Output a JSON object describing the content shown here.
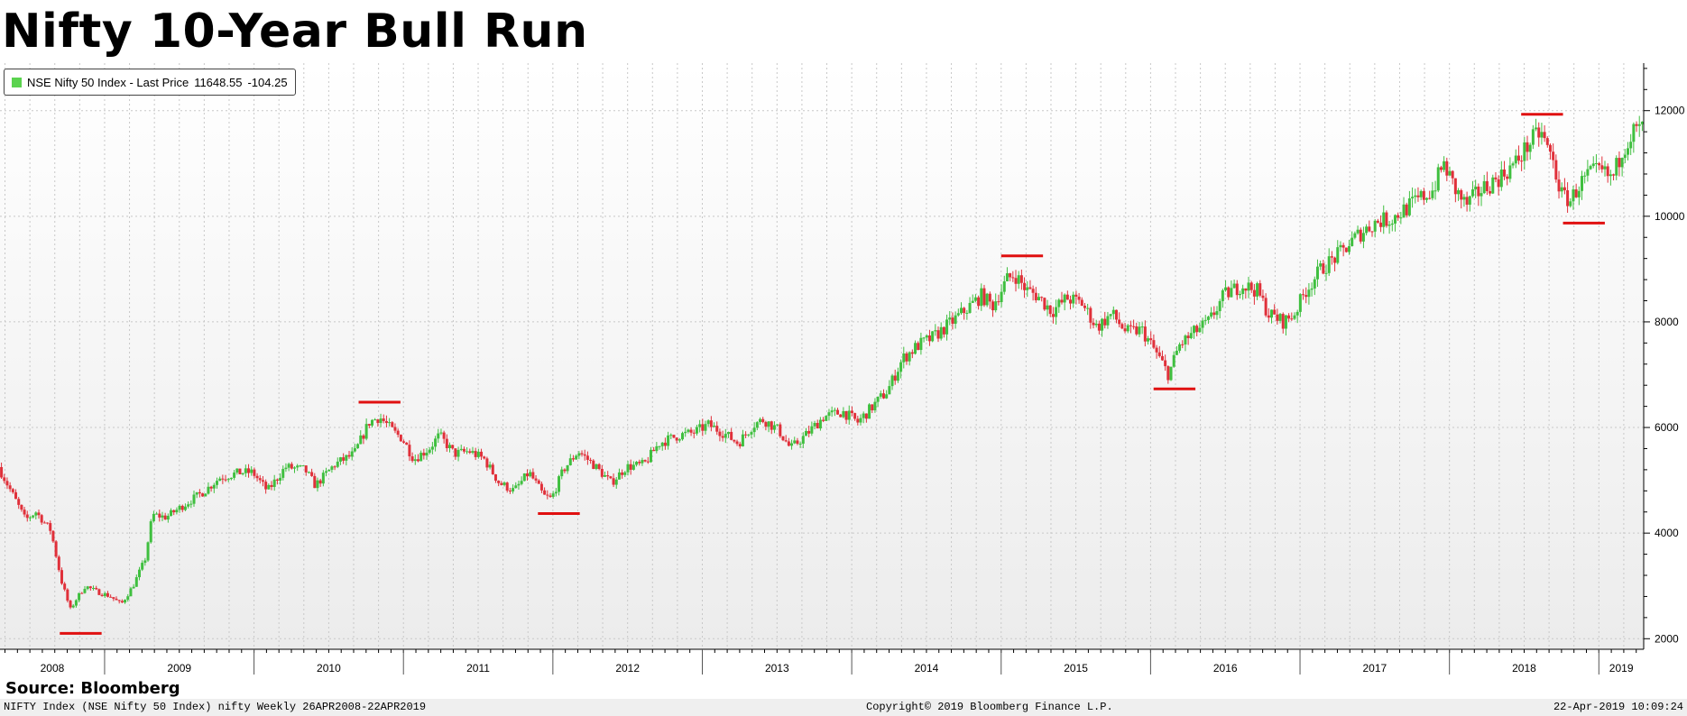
{
  "title": "Nifty 10-Year Bull Run",
  "legend": {
    "label": "NSE Nifty 50 Index - Last Price",
    "last_price": "11648.55",
    "change": "-104.25",
    "swatch_color": "#5bd34f"
  },
  "source": "Source: Bloomberg",
  "footer": {
    "left": "NIFTY Index (NSE Nifty 50 Index) nifty  Weekly 26APR2008-22APR2019",
    "center": "Copyright© 2019 Bloomberg Finance L.P.",
    "right": "22-Apr-2019 10:09:24"
  },
  "chart_data": {
    "type": "candlestick",
    "title": "Nifty 10-Year Bull Run",
    "series": [
      {
        "name": "NSE Nifty 50 Index - Last Price"
      }
    ],
    "y_axis_position": "right",
    "ylim": [
      1800,
      12900
    ],
    "yticks": [
      2000,
      4000,
      6000,
      8000,
      10000,
      12000
    ],
    "xlim": [
      2008.3,
      2019.3
    ],
    "x_labels": [
      "2008",
      "2009",
      "2010",
      "2011",
      "2012",
      "2013",
      "2014",
      "2015",
      "2016",
      "2017",
      "2018",
      "2019"
    ],
    "grid": true,
    "up_color": "#3fbf3f",
    "down_color": "#e0303a",
    "marker_color": "#e01010",
    "price_path": [
      [
        2008.3,
        5250
      ],
      [
        2008.4,
        4700
      ],
      [
        2008.48,
        4250
      ],
      [
        2008.55,
        4400
      ],
      [
        2008.65,
        4050
      ],
      [
        2008.72,
        3100
      ],
      [
        2008.78,
        2550
      ],
      [
        2008.82,
        2750
      ],
      [
        2008.88,
        3000
      ],
      [
        2008.95,
        2900
      ],
      [
        2009.05,
        2800
      ],
      [
        2009.12,
        2650
      ],
      [
        2009.2,
        3000
      ],
      [
        2009.28,
        3500
      ],
      [
        2009.33,
        4350
      ],
      [
        2009.42,
        4300
      ],
      [
        2009.55,
        4550
      ],
      [
        2009.68,
        4800
      ],
      [
        2009.78,
        5050
      ],
      [
        2009.92,
        5150
      ],
      [
        2010.0,
        5150
      ],
      [
        2010.1,
        4800
      ],
      [
        2010.22,
        5250
      ],
      [
        2010.35,
        5200
      ],
      [
        2010.42,
        4900
      ],
      [
        2010.55,
        5300
      ],
      [
        2010.68,
        5500
      ],
      [
        2010.78,
        6100
      ],
      [
        2010.85,
        6200
      ],
      [
        2010.95,
        5900
      ],
      [
        2011.0,
        5800
      ],
      [
        2011.08,
        5400
      ],
      [
        2011.18,
        5600
      ],
      [
        2011.25,
        5850
      ],
      [
        2011.35,
        5500
      ],
      [
        2011.45,
        5550
      ],
      [
        2011.55,
        5400
      ],
      [
        2011.65,
        4950
      ],
      [
        2011.75,
        4800
      ],
      [
        2011.85,
        5150
      ],
      [
        2011.95,
        4700
      ],
      [
        2012.0,
        4650
      ],
      [
        2012.08,
        5200
      ],
      [
        2012.18,
        5550
      ],
      [
        2012.28,
        5300
      ],
      [
        2012.4,
        4950
      ],
      [
        2012.5,
        5250
      ],
      [
        2012.62,
        5300
      ],
      [
        2012.72,
        5700
      ],
      [
        2012.85,
        5850
      ],
      [
        2012.95,
        5900
      ],
      [
        2013.05,
        6050
      ],
      [
        2013.15,
        5900
      ],
      [
        2013.25,
        5700
      ],
      [
        2013.35,
        6050
      ],
      [
        2013.42,
        6150
      ],
      [
        2013.52,
        5950
      ],
      [
        2013.6,
        5600
      ],
      [
        2013.7,
        5850
      ],
      [
        2013.82,
        6200
      ],
      [
        2013.95,
        6300
      ],
      [
        2014.05,
        6100
      ],
      [
        2014.15,
        6400
      ],
      [
        2014.25,
        6700
      ],
      [
        2014.35,
        7300
      ],
      [
        2014.45,
        7550
      ],
      [
        2014.55,
        7700
      ],
      [
        2014.68,
        8000
      ],
      [
        2014.78,
        8250
      ],
      [
        2014.88,
        8500
      ],
      [
        2014.95,
        8300
      ],
      [
        2015.05,
        8800
      ],
      [
        2015.1,
        8900
      ],
      [
        2015.18,
        8600
      ],
      [
        2015.25,
        8500
      ],
      [
        2015.35,
        8200
      ],
      [
        2015.45,
        8450
      ],
      [
        2015.55,
        8350
      ],
      [
        2015.65,
        7900
      ],
      [
        2015.75,
        8150
      ],
      [
        2015.85,
        7800
      ],
      [
        2015.95,
        7850
      ],
      [
        2016.05,
        7400
      ],
      [
        2016.13,
        7000
      ],
      [
        2016.2,
        7550
      ],
      [
        2016.3,
        7800
      ],
      [
        2016.4,
        8000
      ],
      [
        2016.5,
        8500
      ],
      [
        2016.62,
        8700
      ],
      [
        2016.72,
        8600
      ],
      [
        2016.8,
        8150
      ],
      [
        2016.9,
        8000
      ],
      [
        2016.97,
        8150
      ],
      [
        2017.05,
        8600
      ],
      [
        2017.15,
        9000
      ],
      [
        2017.28,
        9300
      ],
      [
        2017.4,
        9650
      ],
      [
        2017.52,
        9900
      ],
      [
        2017.62,
        9950
      ],
      [
        2017.72,
        10150
      ],
      [
        2017.82,
        10350
      ],
      [
        2017.9,
        10500
      ],
      [
        2017.97,
        11000
      ],
      [
        2018.05,
        10500
      ],
      [
        2018.12,
        10200
      ],
      [
        2018.22,
        10500
      ],
      [
        2018.35,
        10750
      ],
      [
        2018.45,
        11000
      ],
      [
        2018.55,
        11400
      ],
      [
        2018.62,
        11600
      ],
      [
        2018.7,
        11050
      ],
      [
        2018.76,
        10400
      ],
      [
        2018.82,
        10300
      ],
      [
        2018.88,
        10600
      ],
      [
        2018.95,
        10800
      ],
      [
        2019.02,
        10850
      ],
      [
        2019.1,
        10700
      ],
      [
        2019.17,
        11300
      ],
      [
        2019.24,
        11600
      ],
      [
        2019.29,
        11650
      ]
    ],
    "markers": [
      {
        "x_start": 2008.7,
        "x_end": 2008.98,
        "y": 2100
      },
      {
        "x_start": 2010.7,
        "x_end": 2010.98,
        "y": 6480
      },
      {
        "x_start": 2011.9,
        "x_end": 2012.18,
        "y": 4370
      },
      {
        "x_start": 2015.0,
        "x_end": 2015.28,
        "y": 9250
      },
      {
        "x_start": 2016.02,
        "x_end": 2016.3,
        "y": 6730
      },
      {
        "x_start": 2018.48,
        "x_end": 2018.76,
        "y": 11930
      },
      {
        "x_start": 2018.76,
        "x_end": 2019.04,
        "y": 9870
      }
    ]
  }
}
